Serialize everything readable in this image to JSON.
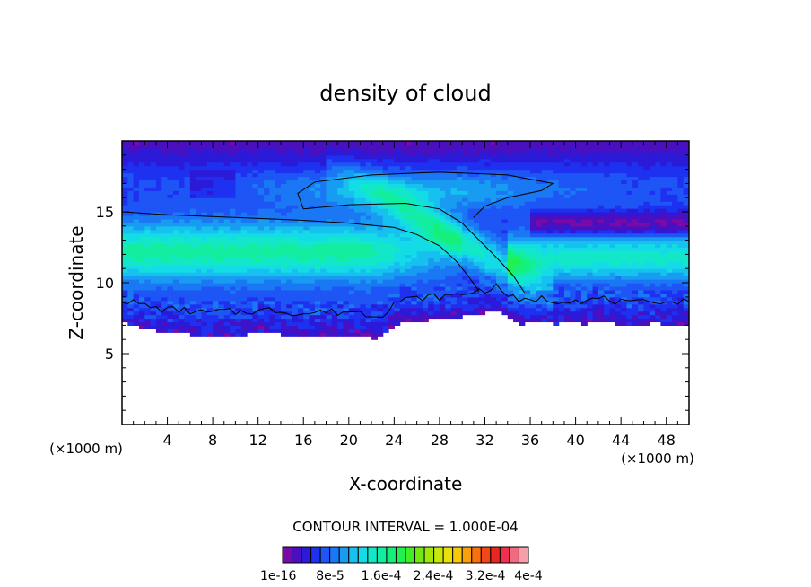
{
  "chart_data": {
    "type": "heatmap",
    "title": "density of cloud",
    "xlabel": "X-coordinate",
    "ylabel": "Z-coordinate",
    "x_unit": "(×1000 m)",
    "z_unit": "(×1000 m)",
    "xlim": [
      0,
      50
    ],
    "ylim": [
      0,
      20
    ],
    "x_ticks": [
      4,
      8,
      12,
      16,
      20,
      24,
      28,
      32,
      36,
      40,
      44,
      48
    ],
    "y_ticks": [
      5,
      10,
      15
    ],
    "contour_interval_label": "CONTOUR INTERVAL = 1.000E-04",
    "colorbar": {
      "min": 1e-16,
      "max": 0.0004,
      "tick_labels": [
        "1e-16",
        "8e-5",
        "1.6e-4",
        "2.4e-4",
        "3.2e-4",
        "4e-4"
      ],
      "colors": [
        "#7a0aa8",
        "#4a10c0",
        "#2b1ad8",
        "#1e30f0",
        "#1e55f5",
        "#1a78f5",
        "#189cf2",
        "#16c0ef",
        "#14dce6",
        "#12e8c8",
        "#12eea0",
        "#14f078",
        "#20f050",
        "#40ee28",
        "#70ea10",
        "#a0e80a",
        "#c8e80a",
        "#e8e008",
        "#f8c80a",
        "#f8a00c",
        "#f87010",
        "#f04818",
        "#e82820",
        "#f03050",
        "#f06a80",
        "#f4a0a8"
      ]
    },
    "fields": {
      "cloud_base_km": [
        7.2,
        7.0,
        6.8,
        6.6,
        6.5,
        6.5,
        6.4,
        6.3,
        6.3,
        6.4,
        6.3,
        6.4,
        6.4,
        6.5,
        6.4,
        6.3,
        6.2,
        6.3,
        6.4,
        6.3,
        6.4,
        6.3,
        6.1,
        6.2,
        7.0,
        7.2,
        7.3,
        7.4,
        7.4,
        7.5,
        7.6,
        7.8,
        7.9,
        8.1,
        7.6,
        7.0,
        7.2,
        7.3,
        7.1,
        7.2,
        7.2,
        7.1,
        7.3,
        7.2,
        7.0,
        6.9,
        7.0,
        7.2,
        7.0,
        7.1,
        7.0
      ],
      "notes": "Cloud density field: low density near cloud base (~6.5–8 km), bright cyan/green core between ~10 and 14 km on the left, anvil near 15–18 km, sloping plume from x≈22 to x≈35, dark blue/purple upper region above ~17 km."
    }
  }
}
